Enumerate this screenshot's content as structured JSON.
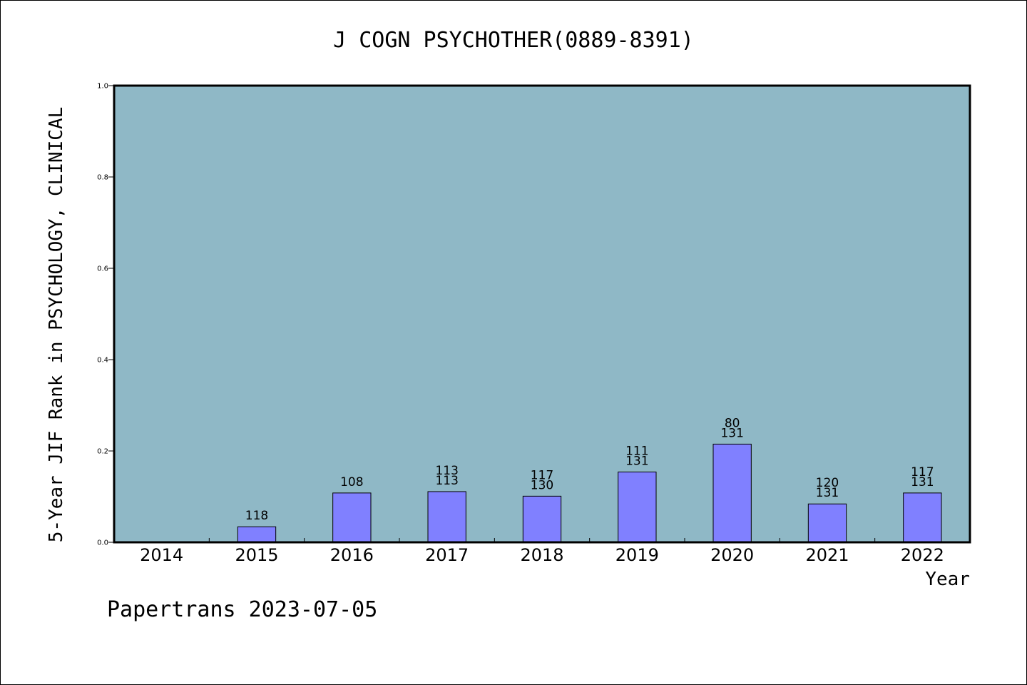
{
  "chart_data": {
    "type": "bar",
    "title": "J COGN PSYCHOTHER(0889-8391)",
    "ylabel": "5-Year JIF Rank in PSYCHOLOGY, CLINICAL",
    "xlabel": "Year",
    "ylim": [
      0,
      1.0
    ],
    "yticks": [
      "0.0",
      "0.2",
      "0.4",
      "0.6",
      "0.8",
      "1.0"
    ],
    "ytick_values": [
      0,
      0.2,
      0.4,
      0.6,
      0.8,
      1.0
    ],
    "categories": [
      "2014",
      "2015",
      "2016",
      "2017",
      "2018",
      "2019",
      "2020",
      "2021",
      "2022"
    ],
    "values": [
      null,
      0.034,
      0.108,
      0.111,
      0.101,
      0.154,
      0.215,
      0.084,
      0.108
    ],
    "labels": [
      [],
      [
        "118"
      ],
      [
        "108"
      ],
      [
        "113",
        "113"
      ],
      [
        "117",
        "130"
      ],
      [
        "111",
        "131"
      ],
      [
        "80",
        "131"
      ],
      [
        "120",
        "131"
      ],
      [
        "117",
        "131"
      ]
    ],
    "grid": false,
    "colors": {
      "plot_background": "#8fb8c6",
      "bar_fill": "#8080ff",
      "bar_stroke": "#000000"
    }
  },
  "footer": {
    "credit": "Papertrans 2023-07-05"
  }
}
